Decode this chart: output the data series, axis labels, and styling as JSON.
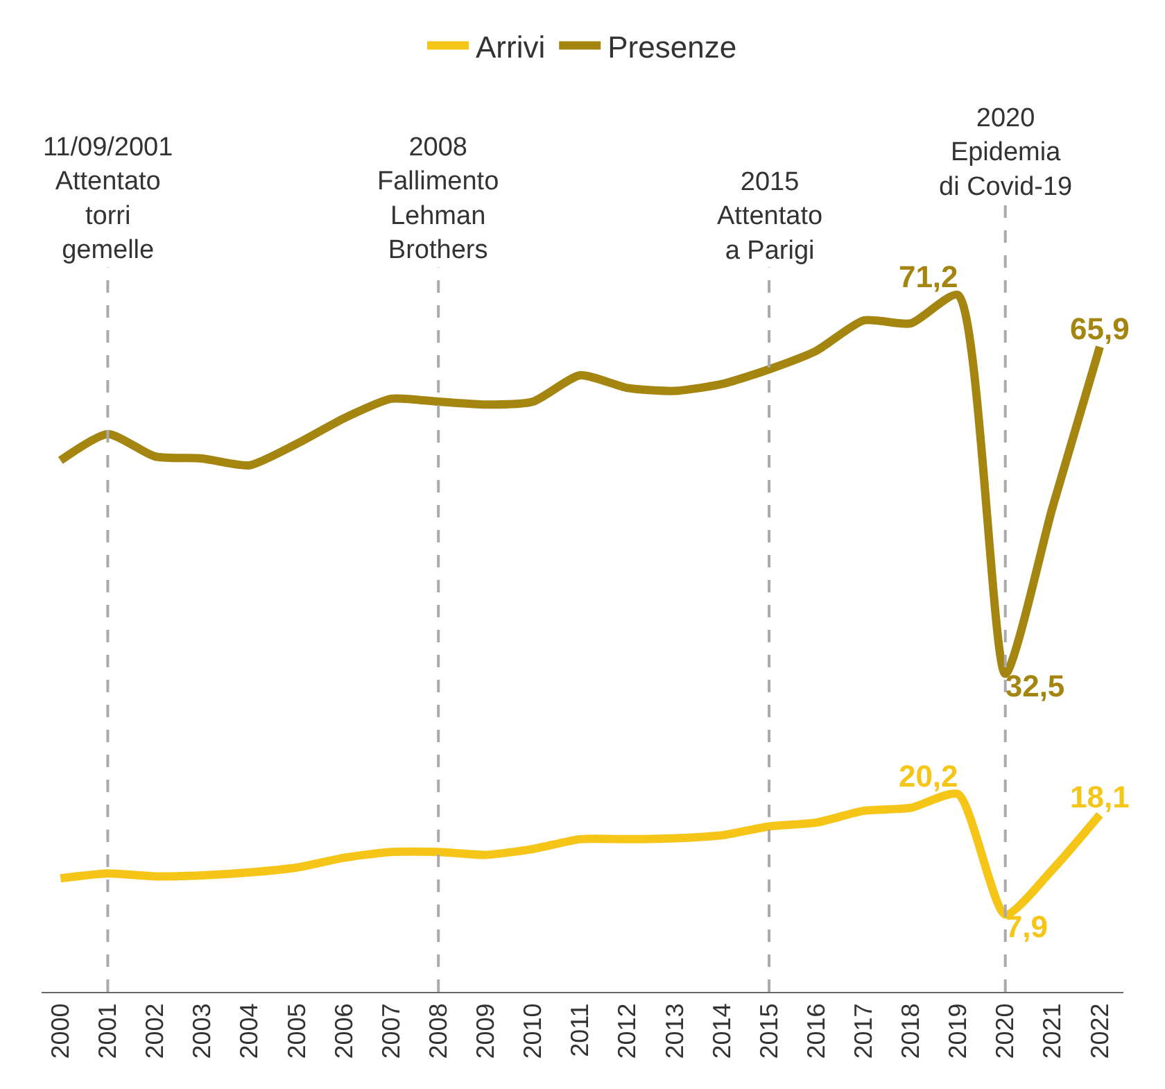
{
  "chart_data": {
    "type": "line",
    "x": [
      2000,
      2001,
      2002,
      2003,
      2004,
      2005,
      2006,
      2007,
      2008,
      2009,
      2010,
      2011,
      2012,
      2013,
      2014,
      2015,
      2016,
      2017,
      2018,
      2019,
      2020,
      2021,
      2022
    ],
    "series": [
      {
        "name": "Arrivi",
        "color": "#f5c518",
        "values": [
          11.6,
          12.1,
          11.8,
          11.9,
          12.2,
          12.7,
          13.7,
          14.3,
          14.3,
          14.0,
          14.6,
          15.6,
          15.6,
          15.7,
          16.0,
          16.9,
          17.3,
          18.5,
          18.8,
          20.2,
          7.9,
          12.5,
          18.1
        ],
        "value_labels": [
          null,
          null,
          null,
          null,
          null,
          null,
          null,
          null,
          null,
          null,
          null,
          null,
          null,
          null,
          null,
          null,
          null,
          null,
          null,
          "20,2",
          "7,9",
          null,
          "18,1"
        ]
      },
      {
        "name": "Presenze",
        "color": "#a3850f",
        "values": [
          54.3,
          57.0,
          54.7,
          54.5,
          53.8,
          56.0,
          58.6,
          60.6,
          60.3,
          60.0,
          60.3,
          63.0,
          61.7,
          61.4,
          62.1,
          63.6,
          65.5,
          68.6,
          68.3,
          71.2,
          32.5,
          49.5,
          65.9
        ],
        "value_labels": [
          null,
          null,
          null,
          null,
          null,
          null,
          null,
          null,
          null,
          null,
          null,
          null,
          null,
          null,
          null,
          null,
          null,
          null,
          null,
          "71,2",
          "32,5",
          null,
          "65,9"
        ]
      }
    ],
    "xlim": [
      1999.6,
      2022.5
    ],
    "xticks": [
      2000,
      2001,
      2002,
      2003,
      2004,
      2005,
      2006,
      2007,
      2008,
      2009,
      2010,
      2011,
      2012,
      2013,
      2014,
      2015,
      2016,
      2017,
      2018,
      2019,
      2020,
      2021,
      2022
    ],
    "tick_labels": "x",
    "grid": false,
    "legend": "top",
    "marker": "none",
    "line_style": "solid",
    "ref_lines": [
      {
        "axis": "x",
        "value": 2001,
        "label": "11/09/2001\nAttentato\ntorri\ngemelle",
        "color": "#aaaaaa",
        "line_style": "dashed"
      },
      {
        "axis": "x",
        "value": 2008,
        "label": "2008\nFallimento\nLehman\nBrothers",
        "color": "#aaaaaa",
        "line_style": "dashed"
      },
      {
        "axis": "x",
        "value": 2015,
        "label": "2015\nAttentato\na Parigi",
        "color": "#aaaaaa",
        "line_style": "dashed"
      },
      {
        "axis": "x",
        "value": 2020,
        "label": "2020\nEpidemia\ndi Covid-19",
        "color": "#aaaaaa",
        "line_style": "dashed"
      }
    ]
  }
}
